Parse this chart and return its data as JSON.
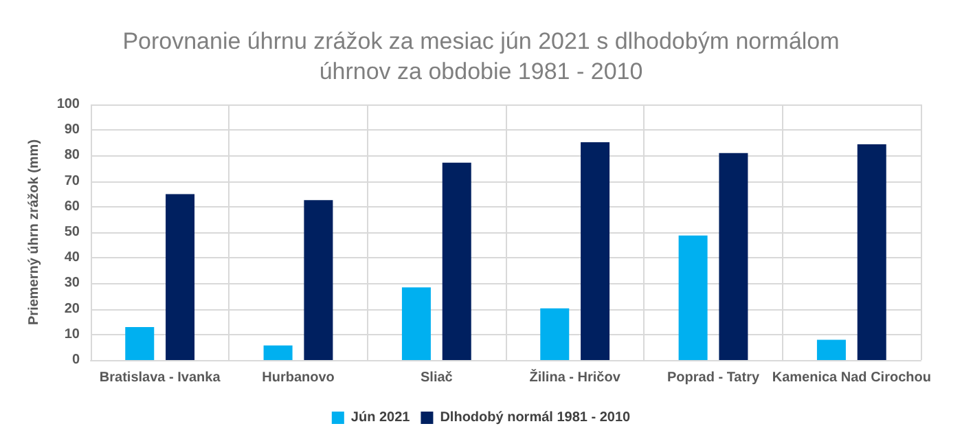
{
  "chart_data": {
    "type": "bar",
    "title": "Porovnanie úhrnu zrážok za mesiac jún 2021 s dlhodobým normálom\núhrnov za obdobie 1981 - 2010",
    "ylabel": "Priemerný úhrn zrážok (mm)",
    "categories": [
      "Bratislava - Ivanka",
      "Hurbanovo",
      "Sliač",
      "Žilina - Hričov",
      "Poprad - Tatry",
      "Kamenica Nad Cirochou"
    ],
    "series": [
      {
        "name": "Jún 2021",
        "color": "#00b0f0",
        "values": [
          12.9,
          5.7,
          28.4,
          20.2,
          48.7,
          7.9
        ]
      },
      {
        "name": "Dlhodobý normál 1981 - 2010",
        "color": "#002060",
        "values": [
          64.9,
          62.6,
          77.2,
          85.2,
          81.0,
          84.4
        ]
      }
    ],
    "ylim": [
      0,
      100
    ],
    "yticks": [
      0,
      10,
      20,
      30,
      40,
      50,
      60,
      70,
      80,
      90,
      100
    ],
    "grid": true,
    "legend": "bottom"
  }
}
